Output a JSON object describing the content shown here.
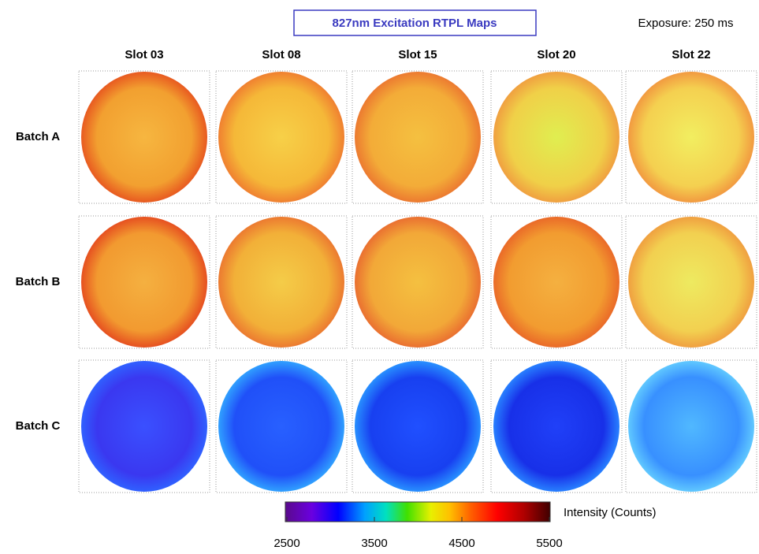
{
  "title": "827nm Excitation RTPL Maps",
  "exposure": "Exposure: 250 ms",
  "columns": [
    "Slot 03",
    "Slot 08",
    "Slot 15",
    "Slot 20",
    "Slot 22"
  ],
  "rows": [
    "Batch A",
    "Batch B",
    "Batch C"
  ],
  "colorbar": {
    "label": "Intensity (Counts)",
    "lim": [
      2500,
      5500
    ],
    "ticks": [
      2500,
      3500,
      4500,
      5500
    ]
  }
}
